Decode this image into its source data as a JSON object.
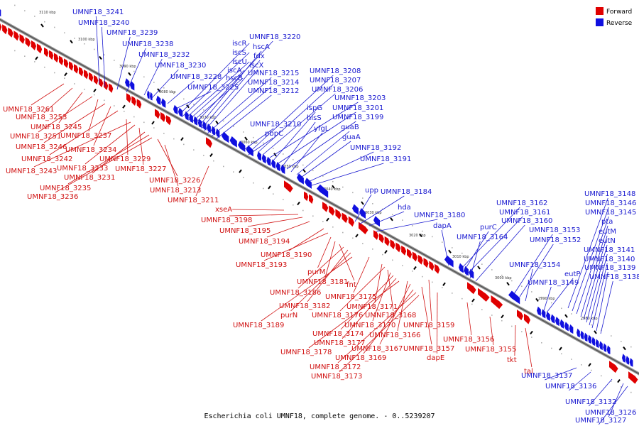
{
  "caption": "Escherichia coli UMNF18, complete genome. - 0..5239207",
  "legend": [
    {
      "label": "Forward",
      "color": "#e00000"
    },
    {
      "label": "Reverse",
      "color": "#1010e0"
    }
  ],
  "ticks": [
    "3110 kbp",
    "3100 kbp",
    "3090 kbp",
    "3080 kbp",
    "3070 kbp",
    "3060 kbp",
    "3050 kbp",
    "3040 kbp",
    "3030 kbp",
    "3020 kbp",
    "3010 kbp",
    "3000 kbp",
    "2990 kbp",
    "2980 kbp"
  ],
  "reverse_labels": [
    "UMNF18_3241",
    "UMNF18_3240",
    "UMNF18_3239",
    "UMNF18_3238",
    "UMNF18_3232",
    "UMNF18_3230",
    "UMNF18_3228",
    "UMNF18_3225",
    "iscR",
    "iscS",
    "iscU",
    "iscA",
    "hscB",
    "UMNF18_3220",
    "hscA",
    "fdx",
    "iscX",
    "UMNF18_3215",
    "UMNF18_3214",
    "UMNF18_3212",
    "UMNF18_3208",
    "UMNF18_3207",
    "UMNF18_3206",
    "UMNF18_3203",
    "ispG",
    "UMNF18_3201",
    "hisS",
    "UMNF18_3199",
    "yfgL",
    "guaB",
    "guaA",
    "UMNF18_3210",
    "pbpC",
    "UMNF18_3192",
    "UMNF18_3191",
    "upp",
    "UMNF18_3184",
    "hda",
    "UMNF18_3180",
    "dapA",
    "UMNF18_3162",
    "purC",
    "UMNF18_3161",
    "UMNF18_3164",
    "UMNF18_3160",
    "UMNF18_3153",
    "UMNF18_3152",
    "UMNF18_3154",
    "UMNF18_3148",
    "UMNF18_3146",
    "UMNF18_3145",
    "pta",
    "eutM",
    "eutN",
    "UMNF18_3141",
    "UMNF18_3140",
    "eutP",
    "UMNF18_3139",
    "UMNF18_3149",
    "UMNF18_3138",
    "UMNF18_3137",
    "UMNF18_3136",
    "UMNF18_3132",
    "UMNF18_3126",
    "UMNF18_3127"
  ],
  "forward_labels": [
    "UMNF18_3261",
    "UMNF18_3253",
    "UMNF18_3245",
    "UMNF18_3251",
    "UMNF18_3237",
    "UMNF18_3246",
    "UMNF18_3234",
    "UMNF18_3242",
    "UMNF18_3229",
    "UMNF18_3243",
    "UMNF18_3233",
    "UMNF18_3227",
    "UMNF18_3231",
    "UMNF18_3226",
    "UMNF18_3235",
    "UMNF18_3213",
    "UMNF18_3236",
    "UMNF18_3211",
    "xseA",
    "UMNF18_3198",
    "UMNF18_3195",
    "UMNF18_3194",
    "UMNF18_3190",
    "UMNF18_3193",
    "purM",
    "UMNF18_3181",
    "fnt",
    "UMNF18_3186",
    "UMNF18_3175",
    "UMNF18_3182",
    "UMNF18_3171",
    "purN",
    "UMNF18_3176",
    "UMNF18_3168",
    "UMNF18_3170",
    "UMNF18_3159",
    "UMNF18_3189",
    "UMNF18_3174",
    "UMNF18_3166",
    "UMNF18_3177",
    "UMNF18_3156",
    "UMNF18_3167",
    "UMNF18_3157",
    "UMNF18_3155",
    "UMNF18_3178",
    "UMNF18_3169",
    "dapE",
    "tkt",
    "UMNF18_3172",
    "tal",
    "UMNF18_3173"
  ]
}
